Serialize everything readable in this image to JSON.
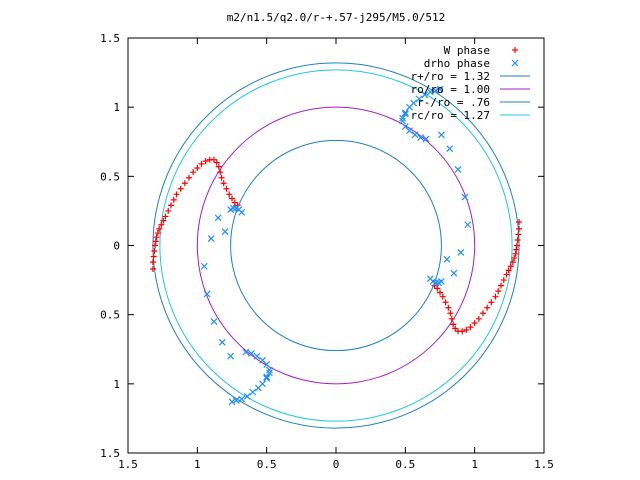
{
  "chart_data": {
    "type": "scatter",
    "title": "m2/n1.5/q2.0/r-+.57-j295/M5.0/512",
    "xlabel": "",
    "ylabel": "",
    "xlim": [
      -1.5,
      1.5
    ],
    "ylim": [
      -1.5,
      1.5
    ],
    "x_ticks": [
      -1.5,
      -1,
      -0.5,
      0,
      0.5,
      1,
      1.5
    ],
    "x_tick_labels": [
      "1.5",
      "1",
      "0.5",
      "0",
      "0.5",
      "1",
      "1.5"
    ],
    "y_ticks": [
      1.5,
      1,
      0.5,
      0,
      -0.5,
      -1,
      -1.5
    ],
    "y_tick_labels": [
      "1.5",
      "1",
      "0.5",
      "0",
      "0.5",
      "1",
      "1.5"
    ],
    "grid": false,
    "legend_position": "top-right",
    "circles": [
      {
        "name": "r+/ro = 1.32",
        "radius": 1.32,
        "color": "#1f7fc4"
      },
      {
        "name": "ro/ro = 1.00",
        "radius": 1.0,
        "color": "#a020c0"
      },
      {
        "name": "r-/ro = .76",
        "radius": 0.76,
        "color": "#1f7fc4"
      },
      {
        "name": "rc/ro = 1.27",
        "radius": 1.27,
        "color": "#20c8d8"
      }
    ],
    "series": [
      {
        "name": "W phase",
        "marker": "plus",
        "color": "#ff0000",
        "points": [
          [
            -1.32,
            -0.17
          ],
          [
            -1.32,
            -0.12
          ],
          [
            -1.315,
            -0.08
          ],
          [
            -1.31,
            -0.04
          ],
          [
            -1.305,
            0.0
          ],
          [
            -1.3,
            0.03
          ],
          [
            -1.295,
            0.06
          ],
          [
            -1.285,
            0.09
          ],
          [
            -1.275,
            0.12
          ],
          [
            -1.26,
            0.15
          ],
          [
            -1.245,
            0.18
          ],
          [
            -1.23,
            0.21
          ],
          [
            -1.21,
            0.25
          ],
          [
            -1.19,
            0.29
          ],
          [
            -1.17,
            0.33
          ],
          [
            -1.15,
            0.37
          ],
          [
            -1.12,
            0.41
          ],
          [
            -1.09,
            0.45
          ],
          [
            -1.06,
            0.49
          ],
          [
            -1.03,
            0.53
          ],
          [
            -1.0,
            0.56
          ],
          [
            -0.97,
            0.59
          ],
          [
            -0.94,
            0.61
          ],
          [
            -0.91,
            0.62
          ],
          [
            -0.88,
            0.62
          ],
          [
            -0.86,
            0.6
          ],
          [
            -0.845,
            0.57
          ],
          [
            -0.835,
            0.53
          ],
          [
            -0.825,
            0.49
          ],
          [
            -0.81,
            0.45
          ],
          [
            -0.79,
            0.41
          ],
          [
            -0.77,
            0.37
          ],
          [
            -0.75,
            0.34
          ],
          [
            -0.73,
            0.31
          ],
          [
            -0.71,
            0.29
          ],
          [
            1.32,
            0.17
          ],
          [
            1.32,
            0.12
          ],
          [
            1.315,
            0.08
          ],
          [
            1.31,
            0.04
          ],
          [
            1.305,
            0.0
          ],
          [
            1.3,
            -0.03
          ],
          [
            1.295,
            -0.06
          ],
          [
            1.285,
            -0.09
          ],
          [
            1.275,
            -0.12
          ],
          [
            1.26,
            -0.15
          ],
          [
            1.245,
            -0.18
          ],
          [
            1.23,
            -0.21
          ],
          [
            1.21,
            -0.25
          ],
          [
            1.19,
            -0.29
          ],
          [
            1.17,
            -0.33
          ],
          [
            1.15,
            -0.37
          ],
          [
            1.12,
            -0.41
          ],
          [
            1.09,
            -0.45
          ],
          [
            1.06,
            -0.49
          ],
          [
            1.03,
            -0.53
          ],
          [
            1.0,
            -0.56
          ],
          [
            0.97,
            -0.59
          ],
          [
            0.94,
            -0.61
          ],
          [
            0.91,
            -0.62
          ],
          [
            0.88,
            -0.62
          ],
          [
            0.86,
            -0.6
          ],
          [
            0.845,
            -0.57
          ],
          [
            0.835,
            -0.53
          ],
          [
            0.825,
            -0.49
          ],
          [
            0.81,
            -0.45
          ],
          [
            0.79,
            -0.41
          ],
          [
            0.77,
            -0.37
          ],
          [
            0.75,
            -0.34
          ],
          [
            0.73,
            -0.31
          ],
          [
            0.71,
            -0.29
          ]
        ]
      },
      {
        "name": "drho phase",
        "marker": "cross",
        "color": "#1f8fff",
        "points": [
          [
            -0.68,
            0.24
          ],
          [
            -0.7,
            0.26
          ],
          [
            -0.72,
            0.27
          ],
          [
            -0.74,
            0.27
          ],
          [
            -0.76,
            0.26
          ],
          [
            -0.5,
            -0.95
          ],
          [
            -0.48,
            -0.9
          ],
          [
            -0.5,
            -0.86
          ],
          [
            -0.53,
            -0.83
          ],
          [
            -0.57,
            -0.8
          ],
          [
            -0.61,
            -0.78
          ],
          [
            -0.65,
            -0.77
          ],
          [
            -0.48,
            -0.92
          ],
          [
            -0.5,
            -0.96
          ],
          [
            -0.53,
            -1.0
          ],
          [
            -0.56,
            -1.03
          ],
          [
            -0.6,
            -1.06
          ],
          [
            -0.64,
            -1.09
          ],
          [
            -0.68,
            -1.11
          ],
          [
            -0.72,
            -1.12
          ],
          [
            -0.75,
            -1.13
          ],
          [
            0.68,
            -0.24
          ],
          [
            0.7,
            -0.26
          ],
          [
            0.72,
            -0.27
          ],
          [
            0.74,
            -0.27
          ],
          [
            0.76,
            -0.26
          ],
          [
            0.5,
            0.95
          ],
          [
            0.48,
            0.9
          ],
          [
            0.5,
            0.86
          ],
          [
            0.53,
            0.83
          ],
          [
            0.57,
            0.8
          ],
          [
            0.61,
            0.78
          ],
          [
            0.65,
            0.77
          ],
          [
            0.48,
            0.92
          ],
          [
            0.5,
            0.96
          ],
          [
            0.53,
            1.0
          ],
          [
            0.56,
            1.03
          ],
          [
            0.6,
            1.06
          ],
          [
            0.64,
            1.09
          ],
          [
            0.68,
            1.11
          ],
          [
            0.72,
            1.12
          ],
          [
            0.75,
            1.13
          ],
          [
            0.8,
            -0.1
          ],
          [
            0.85,
            -0.2
          ],
          [
            0.9,
            -0.05
          ],
          [
            0.95,
            0.15
          ],
          [
            0.93,
            0.35
          ],
          [
            0.88,
            0.55
          ],
          [
            0.82,
            0.7
          ],
          [
            0.76,
            0.8
          ],
          [
            -0.8,
            0.1
          ],
          [
            -0.85,
            0.2
          ],
          [
            -0.9,
            0.05
          ],
          [
            -0.95,
            -0.15
          ],
          [
            -0.93,
            -0.35
          ],
          [
            -0.88,
            -0.55
          ],
          [
            -0.82,
            -0.7
          ],
          [
            -0.76,
            -0.8
          ]
        ]
      }
    ]
  }
}
